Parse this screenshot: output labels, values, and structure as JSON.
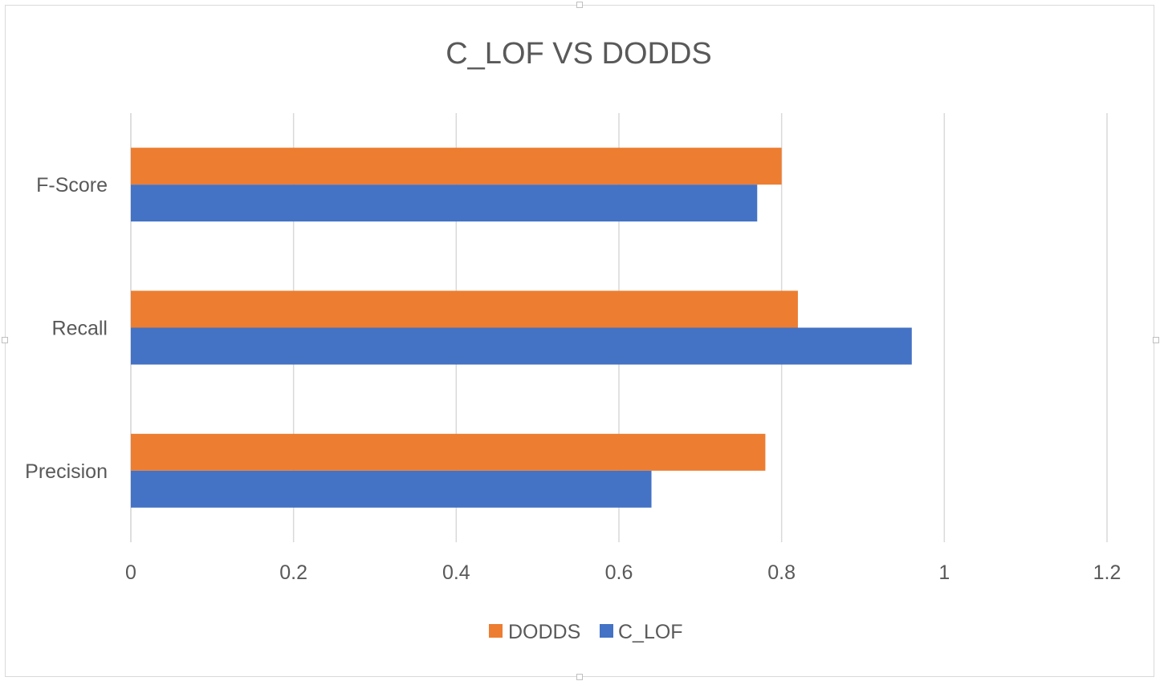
{
  "chart_data": {
    "type": "bar",
    "orientation": "horizontal",
    "title": "C_LOF VS DODDS",
    "xlabel": "",
    "ylabel": "",
    "categories": [
      "Precision",
      "Recall",
      "F-Score"
    ],
    "series": [
      {
        "name": "C_LOF",
        "color": "#4472c4",
        "values": [
          0.64,
          0.96,
          0.77
        ]
      },
      {
        "name": "DODDS",
        "color": "#ed7d31",
        "values": [
          0.78,
          0.82,
          0.8
        ]
      }
    ],
    "xlim": [
      0,
      1.2
    ],
    "xticks": [
      "0",
      "0.2",
      "0.4",
      "0.6",
      "0.8",
      "1",
      "1.2"
    ],
    "grid": true,
    "legend_position": "bottom",
    "legend_order": [
      "DODDS",
      "C_LOF"
    ]
  }
}
